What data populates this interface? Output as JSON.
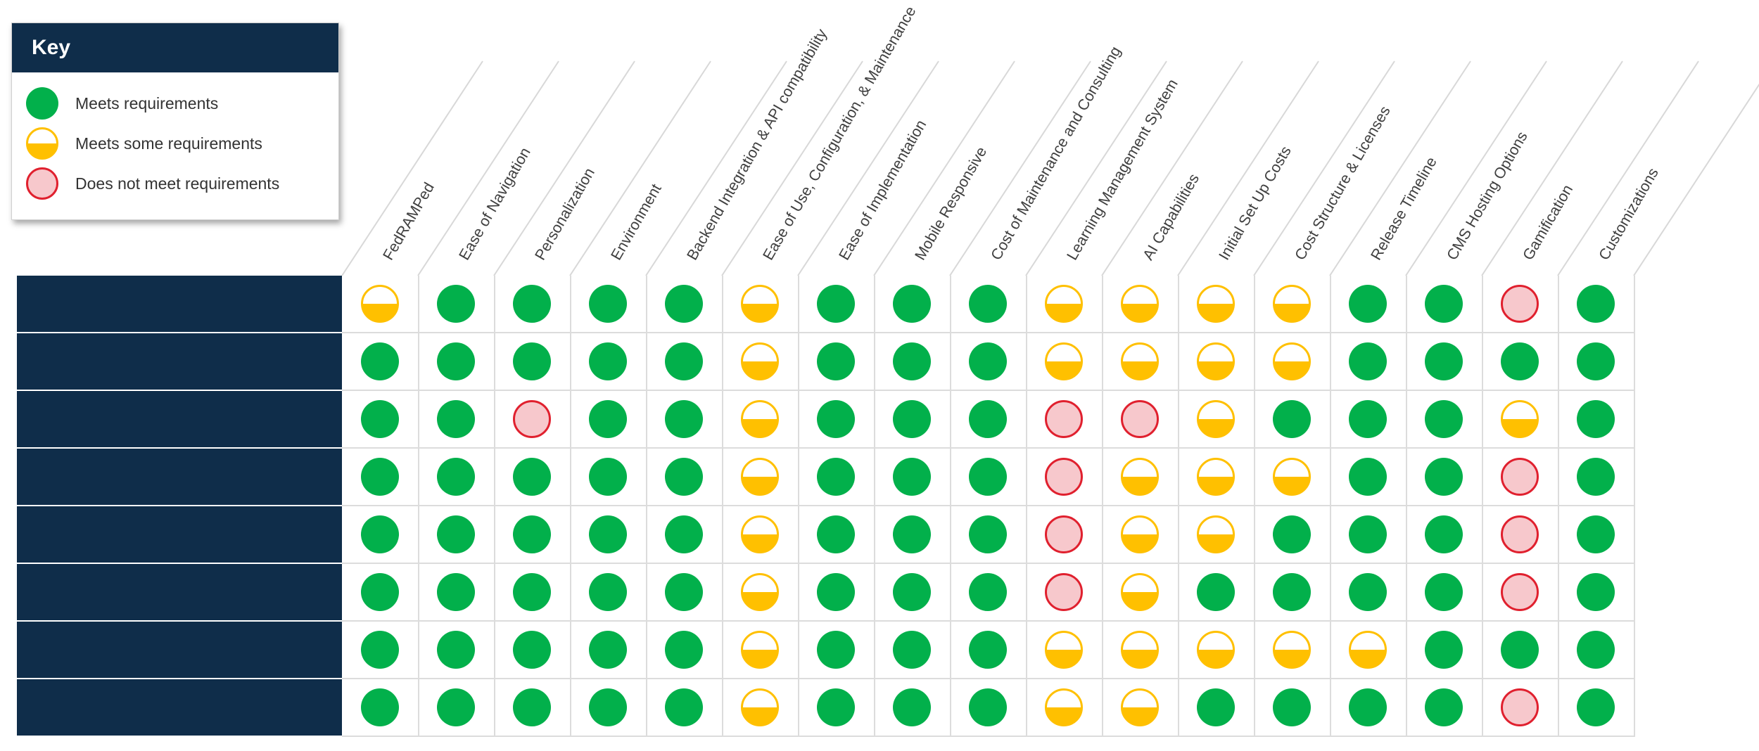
{
  "key": {
    "title": "Key",
    "items": [
      {
        "status": "meets",
        "label": "Meets requirements"
      },
      {
        "status": "some",
        "label": "Meets some requirements"
      },
      {
        "status": "none",
        "label": "Does not meet requirements"
      }
    ]
  },
  "colors": {
    "navy": "#0f2d4a",
    "green": "#02b04b",
    "yellow": "#ffc000",
    "red": "#e0202e",
    "pink": "#f7c8cc"
  },
  "columns": [
    "FedRAMPed",
    "Ease of Navigation",
    "Personalization",
    "Environment",
    "Backend Integration & API compatibility",
    "Ease of Use, Configuration, & Maintenance",
    "Ease of Implementation",
    "Mobile Responsive",
    "Cost of Maintenance and Consulting",
    "Learning Management System",
    "AI Capabilities",
    "Initial Set Up Costs",
    "Cost Structure & Licenses",
    "Release Timeline",
    "CMS Hosting Options",
    "Gamification",
    "Customizations"
  ],
  "rows": [
    [
      "some",
      "meets",
      "meets",
      "meets",
      "meets",
      "some",
      "meets",
      "meets",
      "meets",
      "some",
      "some",
      "some",
      "some",
      "meets",
      "meets",
      "none",
      "meets"
    ],
    [
      "meets",
      "meets",
      "meets",
      "meets",
      "meets",
      "some",
      "meets",
      "meets",
      "meets",
      "some",
      "some",
      "some",
      "some",
      "meets",
      "meets",
      "meets",
      "meets"
    ],
    [
      "meets",
      "meets",
      "none",
      "meets",
      "meets",
      "some",
      "meets",
      "meets",
      "meets",
      "none",
      "none",
      "some",
      "meets",
      "meets",
      "meets",
      "some",
      "meets"
    ],
    [
      "meets",
      "meets",
      "meets",
      "meets",
      "meets",
      "some",
      "meets",
      "meets",
      "meets",
      "none",
      "some",
      "some",
      "some",
      "meets",
      "meets",
      "none",
      "meets"
    ],
    [
      "meets",
      "meets",
      "meets",
      "meets",
      "meets",
      "some",
      "meets",
      "meets",
      "meets",
      "none",
      "some",
      "some",
      "meets",
      "meets",
      "meets",
      "none",
      "meets"
    ],
    [
      "meets",
      "meets",
      "meets",
      "meets",
      "meets",
      "some",
      "meets",
      "meets",
      "meets",
      "none",
      "some",
      "meets",
      "meets",
      "meets",
      "meets",
      "none",
      "meets"
    ],
    [
      "meets",
      "meets",
      "meets",
      "meets",
      "meets",
      "some",
      "meets",
      "meets",
      "meets",
      "some",
      "some",
      "some",
      "some",
      "some",
      "meets",
      "meets",
      "meets"
    ],
    [
      "meets",
      "meets",
      "meets",
      "meets",
      "meets",
      "some",
      "meets",
      "meets",
      "meets",
      "some",
      "some",
      "meets",
      "meets",
      "meets",
      "meets",
      "none",
      "meets"
    ]
  ]
}
